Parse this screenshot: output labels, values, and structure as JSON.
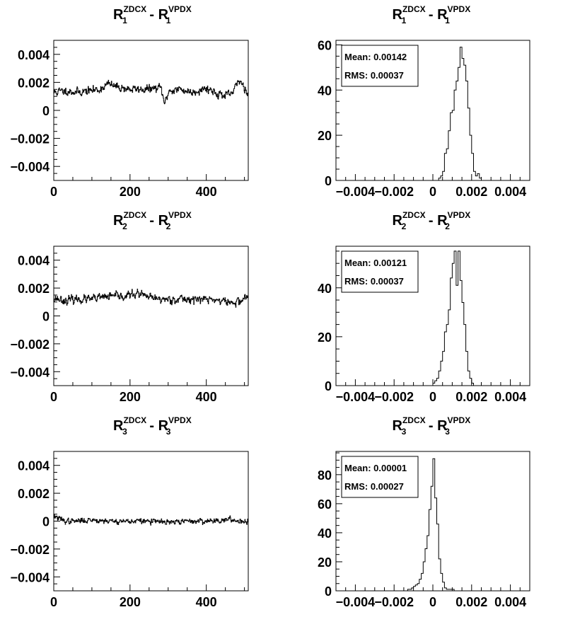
{
  "page": {
    "background": "#ffffff",
    "line_color": "#000000"
  },
  "panels": [
    {
      "title": {
        "base": "R",
        "sub": "1",
        "sup": "ZDCX",
        "sep": "-",
        "base2": "R",
        "sub2": "1",
        "sup2": "VPDX"
      }
    },
    {
      "title": {
        "base": "R",
        "sub": "1",
        "sup": "ZDCX",
        "sep": "-",
        "base2": "R",
        "sub2": "1",
        "sup2": "VPDX"
      }
    },
    {
      "title": {
        "base": "R",
        "sub": "2",
        "sup": "ZDCX",
        "sep": "-",
        "base2": "R",
        "sub2": "2",
        "sup2": "VPDX"
      }
    },
    {
      "title": {
        "base": "R",
        "sub": "2",
        "sup": "ZDCX",
        "sep": "-",
        "base2": "R",
        "sub2": "2",
        "sup2": "VPDX"
      }
    },
    {
      "title": {
        "base": "R",
        "sub": "3",
        "sup": "ZDCX",
        "sep": "-",
        "base2": "R",
        "sub2": "3",
        "sup2": "VPDX"
      }
    },
    {
      "title": {
        "base": "R",
        "sub": "3",
        "sup": "ZDCX",
        "sep": "-",
        "base2": "R",
        "sub2": "3",
        "sup2": "VPDX"
      }
    }
  ],
  "chart_data": [
    {
      "type": "line",
      "xlim": [
        0,
        510
      ],
      "ylim": [
        -0.005,
        0.005
      ],
      "x_ticks": [
        0,
        200,
        400
      ],
      "x_tick_labels": [
        "0",
        "200",
        "400"
      ],
      "y_ticks": [
        -0.004,
        -0.002,
        0,
        0.002,
        0.004
      ],
      "y_tick_labels": [
        "−0.004",
        "−0.002",
        "0",
        "0.002",
        "0.004"
      ],
      "x_range_samples": [
        0,
        510
      ],
      "series": [
        {
          "shape_x": [
            0,
            30,
            60,
            90,
            120,
            140,
            160,
            200,
            240,
            280,
            290,
            300,
            330,
            360,
            400,
            430,
            450,
            470,
            485,
            500,
            510
          ],
          "shape_y": [
            0.0013,
            0.0014,
            0.0013,
            0.0014,
            0.0015,
            0.0019,
            0.0017,
            0.0015,
            0.0015,
            0.0016,
            0.0004,
            0.0014,
            0.0015,
            0.0013,
            0.0016,
            0.0012,
            0.001,
            0.0013,
            0.0022,
            0.0016,
            0.0012
          ],
          "noise_std": 0.0003,
          "seed": 11
        }
      ]
    },
    {
      "type": "bar",
      "xlim": [
        -0.005,
        0.005
      ],
      "ylim": [
        0,
        62
      ],
      "x_ticks": [
        -0.004,
        -0.002,
        0,
        0.002,
        0.004
      ],
      "x_tick_labels": [
        "−0.004",
        "−0.002",
        "0",
        "0.002",
        "0.004"
      ],
      "y_ticks": [
        0,
        20,
        40,
        60
      ],
      "y_tick_labels": [
        "0",
        "20",
        "40",
        "60"
      ],
      "bins_x0": [
        0.0003,
        0.0004,
        0.0005,
        0.0006,
        0.0007,
        0.0008,
        0.0009,
        0.001,
        0.0011,
        0.0012,
        0.0013,
        0.0014,
        0.0015,
        0.0016,
        0.0017,
        0.0018,
        0.0019,
        0.002,
        0.0021,
        0.0022,
        0.0023,
        0.0024
      ],
      "bin_width": 0.0001,
      "values": [
        1,
        2,
        4,
        12,
        14,
        22,
        30,
        31,
        40,
        44,
        50,
        59,
        54,
        51,
        44,
        32,
        20,
        12,
        4,
        2,
        3,
        1
      ],
      "stats": {
        "mean_label": "Mean: 0.00142",
        "rms_label": "RMS: 0.00037"
      }
    },
    {
      "type": "line",
      "xlim": [
        0,
        510
      ],
      "ylim": [
        -0.005,
        0.005
      ],
      "x_ticks": [
        0,
        200,
        400
      ],
      "x_tick_labels": [
        "0",
        "200",
        "400"
      ],
      "y_ticks": [
        -0.004,
        -0.002,
        0,
        0.002,
        0.004
      ],
      "y_tick_labels": [
        "−0.004",
        "−0.002",
        "0",
        "0.002",
        "0.004"
      ],
      "x_range_samples": [
        0,
        510
      ],
      "series": [
        {
          "shape_x": [
            0,
            30,
            60,
            100,
            140,
            180,
            220,
            250,
            280,
            320,
            360,
            400,
            440,
            470,
            490,
            510
          ],
          "shape_y": [
            0.0013,
            0.0011,
            0.0012,
            0.0012,
            0.0014,
            0.0014,
            0.0016,
            0.0013,
            0.0012,
            0.0012,
            0.0012,
            0.0012,
            0.0011,
            0.0009,
            0.0011,
            0.0015
          ],
          "noise_std": 0.0003,
          "seed": 23
        }
      ]
    },
    {
      "type": "bar",
      "xlim": [
        -0.005,
        0.005
      ],
      "ylim": [
        0,
        57
      ],
      "x_ticks": [
        -0.004,
        -0.002,
        0,
        0.002,
        0.004
      ],
      "x_tick_labels": [
        "−0.004",
        "−0.002",
        "0",
        "0.002",
        "0.004"
      ],
      "y_ticks": [
        0,
        20,
        40
      ],
      "y_tick_labels": [
        "0",
        "20",
        "40"
      ],
      "bins_x0": [
        0.0,
        0.0001,
        0.0002,
        0.0003,
        0.0004,
        0.0005,
        0.0006,
        0.0007,
        0.0008,
        0.0009,
        0.001,
        0.0011,
        0.0012,
        0.0013,
        0.0014,
        0.0015,
        0.0016,
        0.0017,
        0.0018,
        0.0019,
        0.002
      ],
      "bin_width": 0.0001,
      "values": [
        1,
        2,
        3,
        6,
        10,
        14,
        22,
        25,
        31,
        44,
        50,
        55,
        41,
        55,
        43,
        34,
        25,
        14,
        6,
        3,
        1
      ],
      "stats": {
        "mean_label": "Mean: 0.00121",
        "rms_label": "RMS: 0.00037"
      }
    },
    {
      "type": "line",
      "xlim": [
        0,
        510
      ],
      "ylim": [
        -0.005,
        0.005
      ],
      "x_ticks": [
        0,
        200,
        400
      ],
      "x_tick_labels": [
        "0",
        "200",
        "400"
      ],
      "y_ticks": [
        -0.004,
        -0.002,
        0,
        0.002,
        0.004
      ],
      "y_tick_labels": [
        "−0.004",
        "−0.002",
        "0",
        "0.002",
        "0.004"
      ],
      "x_range_samples": [
        0,
        510
      ],
      "series": [
        {
          "shape_x": [
            0,
            10,
            30,
            60,
            100,
            150,
            200,
            250,
            300,
            350,
            400,
            450,
            500,
            510
          ],
          "shape_y": [
            0.0004,
            0.0002,
            0.0,
            0.0,
            0.0001,
            0.0,
            0.0,
            0.0,
            -0.0001,
            0.0,
            0.0,
            0.0001,
            0.0,
            0.0
          ],
          "noise_std": 0.0002,
          "seed": 37
        }
      ]
    },
    {
      "type": "bar",
      "xlim": [
        -0.005,
        0.005
      ],
      "ylim": [
        0,
        96
      ],
      "x_ticks": [
        -0.004,
        -0.002,
        0,
        0.002,
        0.004
      ],
      "x_tick_labels": [
        "−0.004",
        "−0.002",
        "0",
        "0.002",
        "0.004"
      ],
      "y_ticks": [
        0,
        20,
        40,
        60,
        80
      ],
      "y_tick_labels": [
        "0",
        "20",
        "40",
        "60",
        "80"
      ],
      "bins_x0": [
        -0.0013,
        -0.0012,
        -0.0011,
        -0.001,
        -0.0009,
        -0.0008,
        -0.0007,
        -0.0006,
        -0.0005,
        -0.0004,
        -0.0003,
        -0.0002,
        -0.0001,
        0.0,
        0.0001,
        0.0002,
        0.0003,
        0.0004,
        0.0005,
        0.0006,
        0.0007,
        0.0008,
        0.0009,
        0.001
      ],
      "bin_width": 0.0001,
      "values": [
        1,
        1,
        2,
        3,
        4,
        5,
        8,
        12,
        20,
        29,
        38,
        56,
        72,
        91,
        64,
        46,
        22,
        12,
        6,
        2,
        1,
        1,
        1,
        1
      ],
      "stats": {
        "mean_label": "Mean: 0.00001",
        "rms_label": "RMS: 0.00027"
      }
    }
  ]
}
